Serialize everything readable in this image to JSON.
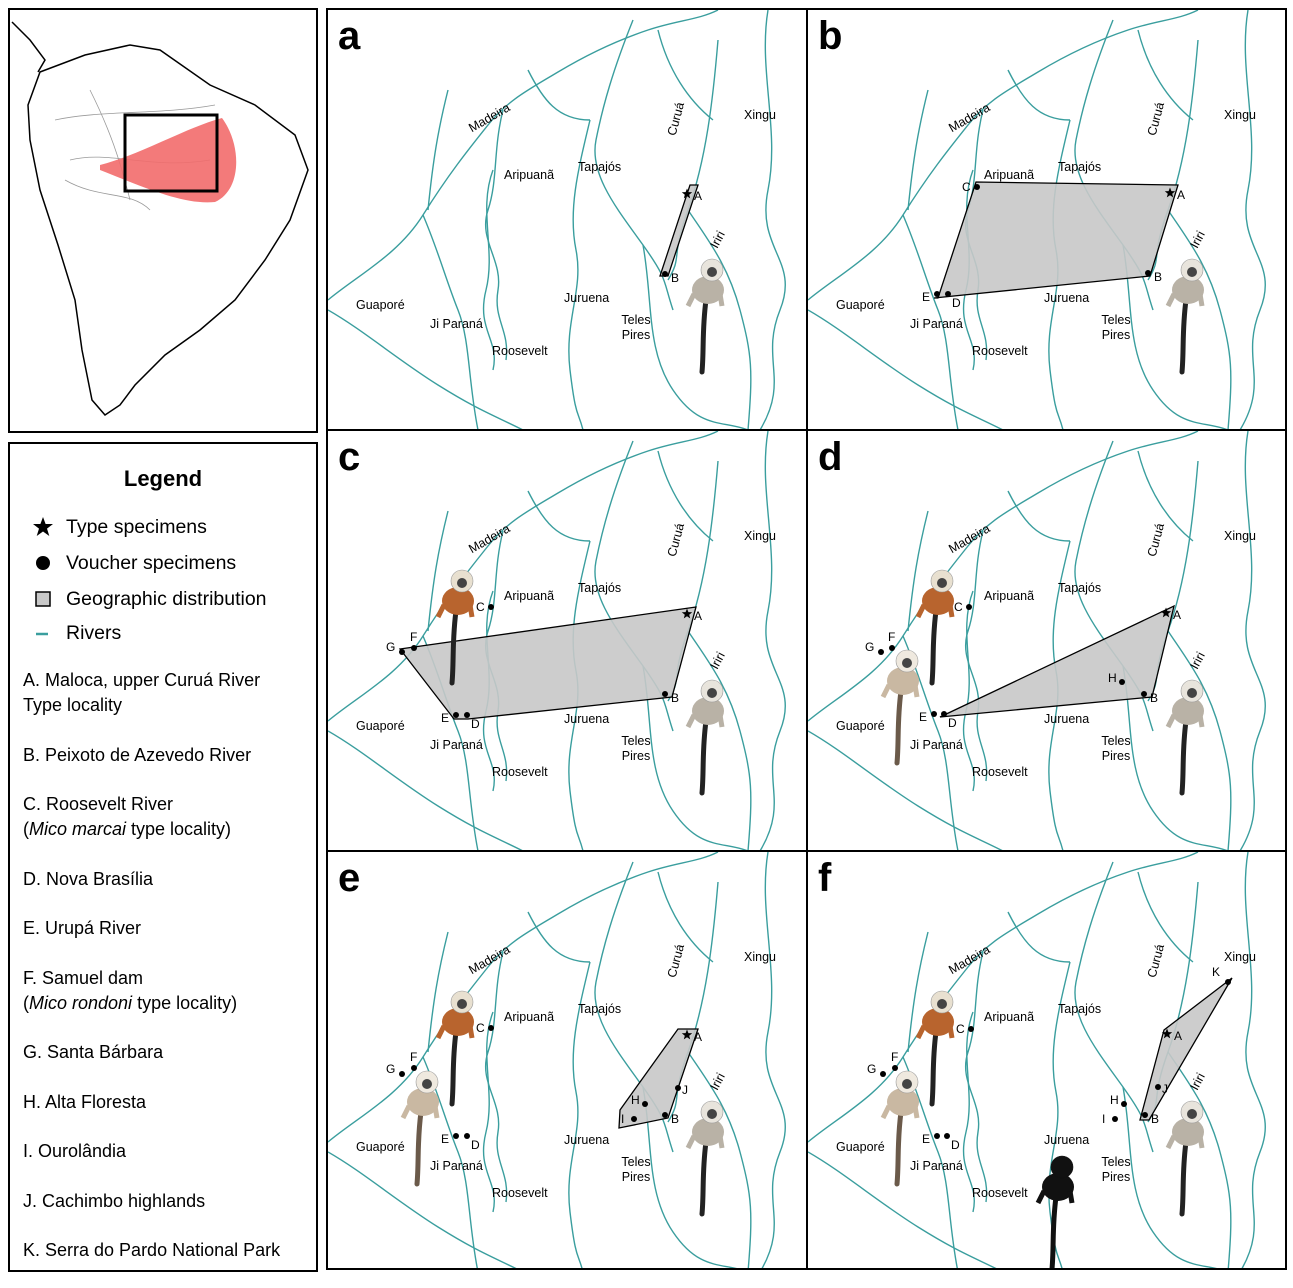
{
  "legend": {
    "title": "Legend",
    "symbols": [
      {
        "label": "Type specimens"
      },
      {
        "label": "Voucher specimens"
      },
      {
        "label": "Geographic distribution"
      },
      {
        "label": "Rivers"
      }
    ],
    "localities": [
      {
        "lines": [
          "A. Maloca, upper Curuá River",
          "Type locality"
        ]
      },
      {
        "lines": [
          "B. Peixoto de Azevedo River"
        ]
      },
      {
        "lines": [
          "C. Roosevelt River",
          {
            "before": "(",
            "italic": "Mico marcai",
            "after": " type locality)"
          }
        ]
      },
      {
        "lines": [
          "D. Nova Brasília"
        ]
      },
      {
        "lines": [
          "E. Urupá River"
        ]
      },
      {
        "lines": [
          "F. Samuel dam",
          {
            "before": "(",
            "italic": "Mico rondoni",
            "after": " type locality)"
          }
        ]
      },
      {
        "lines": [
          "G. Santa Bárbara"
        ]
      },
      {
        "lines": [
          "H. Alta Floresta"
        ]
      },
      {
        "lines": [
          "I. Ourolândia"
        ]
      },
      {
        "lines": [
          "J. Cachimbo highlands"
        ]
      },
      {
        "lines": [
          "K. Serra do Pardo National Park"
        ]
      }
    ]
  },
  "river_labels": [
    "Madeira",
    "Aripuanã",
    "Tapajós",
    "Curuá",
    "Xingu",
    "Iriri",
    "Guaporé",
    "Ji Paraná",
    "Roosevelt",
    "Juruena",
    "Teles Pires"
  ],
  "panels": [
    {
      "letter": "a",
      "points": [
        {
          "label": "A",
          "marker": "star"
        },
        {
          "label": "B",
          "marker": "dot"
        }
      ]
    },
    {
      "letter": "b",
      "points": [
        {
          "label": "C",
          "marker": "dot"
        },
        {
          "label": "A",
          "marker": "star"
        },
        {
          "label": "B",
          "marker": "dot"
        },
        {
          "label": "E",
          "marker": "dot"
        },
        {
          "label": "D",
          "marker": "dot"
        }
      ]
    },
    {
      "letter": "c",
      "points": [
        {
          "label": "C",
          "marker": "dot"
        },
        {
          "label": "A",
          "marker": "star"
        },
        {
          "label": "G",
          "marker": "dot"
        },
        {
          "label": "F",
          "marker": "dot"
        },
        {
          "label": "B",
          "marker": "dot"
        },
        {
          "label": "E",
          "marker": "dot"
        },
        {
          "label": "D",
          "marker": "dot"
        }
      ]
    },
    {
      "letter": "d",
      "points": [
        {
          "label": "C",
          "marker": "dot"
        },
        {
          "label": "A",
          "marker": "star"
        },
        {
          "label": "G",
          "marker": "dot"
        },
        {
          "label": "F",
          "marker": "dot"
        },
        {
          "label": "H",
          "marker": "dot"
        },
        {
          "label": "B",
          "marker": "dot"
        },
        {
          "label": "E",
          "marker": "dot"
        },
        {
          "label": "D",
          "marker": "dot"
        }
      ]
    },
    {
      "letter": "e",
      "points": [
        {
          "label": "C",
          "marker": "dot"
        },
        {
          "label": "A",
          "marker": "star"
        },
        {
          "label": "G",
          "marker": "dot"
        },
        {
          "label": "F",
          "marker": "dot"
        },
        {
          "label": "J",
          "marker": "dot"
        },
        {
          "label": "H",
          "marker": "dot"
        },
        {
          "label": "I",
          "marker": "dot"
        },
        {
          "label": "B",
          "marker": "dot"
        },
        {
          "label": "E",
          "marker": "dot"
        },
        {
          "label": "D",
          "marker": "dot"
        }
      ]
    },
    {
      "letter": "f",
      "points": [
        {
          "label": "K",
          "marker": "dot"
        },
        {
          "label": "C",
          "marker": "dot"
        },
        {
          "label": "A",
          "marker": "star"
        },
        {
          "label": "G",
          "marker": "dot"
        },
        {
          "label": "F",
          "marker": "dot"
        },
        {
          "label": "J",
          "marker": "dot"
        },
        {
          "label": "H",
          "marker": "dot"
        },
        {
          "label": "I",
          "marker": "dot"
        },
        {
          "label": "B",
          "marker": "dot"
        },
        {
          "label": "E",
          "marker": "dot"
        },
        {
          "label": "D",
          "marker": "dot"
        }
      ]
    }
  ]
}
